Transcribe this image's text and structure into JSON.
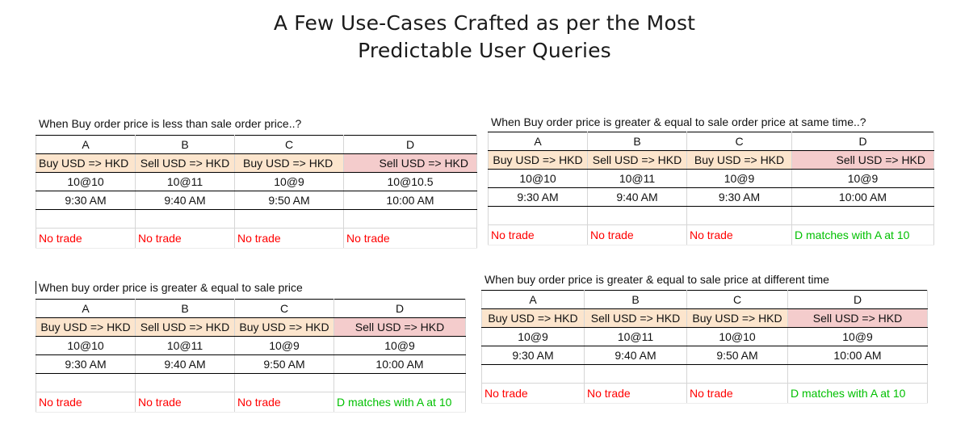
{
  "page_title": {
    "line1": "A Few Use-Cases Crafted as per the Most",
    "line2": "Predictable User Queries"
  },
  "cases": [
    {
      "title": "When Buy order price is less than sale order price..?",
      "columns": [
        "A",
        "B",
        "C",
        "D"
      ],
      "orders": [
        "Buy USD => HKD",
        "Sell USD => HKD",
        "Buy USD => HKD",
        "Sell USD => HKD"
      ],
      "prices": [
        "10@10",
        "10@11",
        "10@9",
        "10@10.5"
      ],
      "times": [
        "9:30 AM",
        "9:40 AM",
        "9:50 AM",
        "10:00 AM"
      ],
      "results": [
        "No trade",
        "No trade",
        "No trade",
        "No trade"
      ]
    },
    {
      "title": "When Buy order price is greater & equal to sale order price at same time..?",
      "columns": [
        "A",
        "B",
        "C",
        "D"
      ],
      "orders": [
        "Buy USD => HKD",
        "Sell USD => HKD",
        "Buy USD => HKD",
        "Sell USD => HKD"
      ],
      "prices": [
        "10@10",
        "10@11",
        "10@9",
        "10@9"
      ],
      "times": [
        "9:30 AM",
        "9:40 AM",
        "9:30 AM",
        "10:00 AM"
      ],
      "results": [
        "No trade",
        "No trade",
        "No trade",
        "D matches with A at 10"
      ]
    },
    {
      "title": "When buy order price is greater & equal to sale price",
      "columns": [
        "A",
        "B",
        "C",
        "D"
      ],
      "orders": [
        "Buy USD => HKD",
        "Sell USD => HKD",
        "Buy USD => HKD",
        "Sell USD => HKD"
      ],
      "prices": [
        "10@10",
        "10@11",
        "10@9",
        "10@9"
      ],
      "times": [
        "9:30 AM",
        "9:40 AM",
        "9:50 AM",
        "10:00 AM"
      ],
      "results": [
        "No trade",
        "No trade",
        "No trade",
        "D matches with A at 10"
      ]
    },
    {
      "title": "When buy order price is greater & equal to sale price at different time",
      "columns": [
        "A",
        "B",
        "C",
        "D"
      ],
      "orders": [
        "Buy USD => HKD",
        "Sell USD => HKD",
        "Buy USD => HKD",
        "Sell USD => HKD"
      ],
      "prices": [
        "10@9",
        "10@11",
        "10@10",
        "10@9"
      ],
      "times": [
        "9:30 AM",
        "9:40 AM",
        "9:50 AM",
        "10:00 AM"
      ],
      "results": [
        "No trade",
        "No trade",
        "No trade",
        "D matches with A at 10"
      ]
    }
  ],
  "colors": {
    "buy_fill": "#fce5cd",
    "sell_fill": "#f4cccc",
    "no_trade_text": "#ff0000",
    "match_text": "#00c000"
  }
}
